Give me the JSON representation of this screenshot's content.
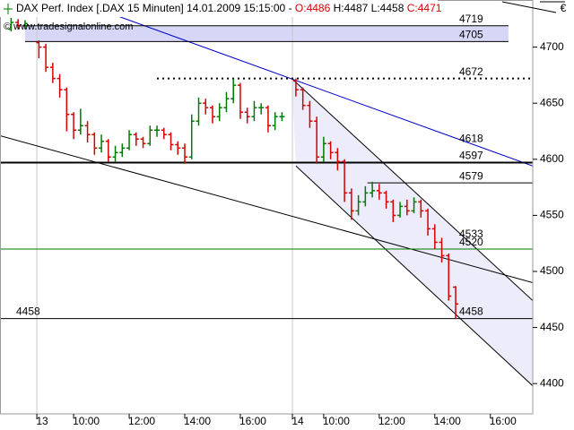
{
  "chart_data": {
    "type": "ohlc",
    "title": "DAX Perf. Index [.DAX  15 Minuten]",
    "timestamp": "14.01.2009 15:15:00",
    "separator": "-",
    "ohlc_labels": [
      {
        "text": "O:4486",
        "color": "#d40000"
      },
      {
        "text": "H:4487",
        "color": "#000000"
      },
      {
        "text": "L:4458",
        "color": "#000000"
      },
      {
        "text": "C:4471",
        "color": "#d40000"
      }
    ],
    "watermark": "© www.tradesignalonline.com",
    "currency": "€",
    "up_color": "#007a00",
    "down_color": "#d40000",
    "x": [
      1,
      2,
      3,
      5,
      6,
      7,
      8,
      9,
      10,
      11,
      12,
      13,
      14,
      15,
      16,
      17,
      18,
      19,
      20,
      21,
      22,
      23,
      24,
      25,
      26,
      27,
      28,
      29,
      30,
      31,
      32,
      33,
      34,
      35,
      36,
      37,
      38,
      39,
      40,
      42,
      43,
      44,
      45,
      46,
      47,
      48,
      49,
      50,
      51,
      52,
      53,
      54,
      55,
      56,
      57,
      58,
      59,
      60,
      61,
      62,
      63,
      64,
      65
    ],
    "open": [
      4716,
      4722,
      4719,
      4704,
      4700,
      4682,
      4672,
      4662,
      4640,
      4626,
      4630,
      4622,
      4610,
      4616,
      4602,
      4606,
      4610,
      4622,
      4618,
      4614,
      4626,
      4626,
      4622,
      4613,
      4610,
      4602,
      4634,
      4650,
      4646,
      4638,
      4646,
      4654,
      4666,
      4642,
      4638,
      4646,
      4646,
      4630,
      4638,
      4670,
      4662,
      4648,
      4634,
      4602,
      4614,
      4606,
      4598,
      4570,
      4554,
      4562,
      4570,
      4572,
      4570,
      4562,
      4550,
      4558,
      4554,
      4562,
      4554,
      4538,
      4526,
      4514,
      4486
    ],
    "high": [
      4726,
      4725,
      4724,
      4706,
      4703,
      4686,
      4676,
      4664,
      4642,
      4645,
      4634,
      4624,
      4622,
      4618,
      4612,
      4614,
      4626,
      4624,
      4620,
      4630,
      4630,
      4628,
      4624,
      4616,
      4614,
      4640,
      4655,
      4654,
      4648,
      4650,
      4660,
      4672,
      4668,
      4646,
      4652,
      4650,
      4648,
      4642,
      4642,
      4672,
      4664,
      4652,
      4638,
      4620,
      4616,
      4610,
      4600,
      4574,
      4568,
      4576,
      4580,
      4578,
      4572,
      4564,
      4562,
      4564,
      4566,
      4564,
      4556,
      4542,
      4530,
      4516,
      4487
    ],
    "low": [
      4714,
      4716,
      4716,
      4690,
      4678,
      4668,
      4655,
      4625,
      4618,
      4622,
      4615,
      4604,
      4606,
      4598,
      4598,
      4602,
      4608,
      4612,
      4610,
      4612,
      4620,
      4618,
      4608,
      4604,
      4596,
      4600,
      4630,
      4640,
      4632,
      4634,
      4642,
      4650,
      4636,
      4632,
      4634,
      4640,
      4624,
      4626,
      4634,
      4656,
      4644,
      4628,
      4596,
      4598,
      4600,
      4590,
      4562,
      4546,
      4550,
      4558,
      4566,
      4564,
      4556,
      4544,
      4548,
      4550,
      4552,
      4548,
      4532,
      4520,
      4508,
      4474,
      4458
    ],
    "close": [
      4722,
      4719,
      4721,
      4700,
      4682,
      4672,
      4662,
      4640,
      4626,
      4630,
      4622,
      4610,
      4616,
      4602,
      4606,
      4610,
      4622,
      4618,
      4614,
      4626,
      4626,
      4622,
      4613,
      4610,
      4602,
      4634,
      4650,
      4646,
      4638,
      4646,
      4654,
      4666,
      4642,
      4638,
      4646,
      4646,
      4630,
      4638,
      4638,
      4662,
      4648,
      4634,
      4602,
      4614,
      4606,
      4598,
      4570,
      4554,
      4562,
      4570,
      4572,
      4570,
      4562,
      4550,
      4558,
      4554,
      4562,
      4554,
      4538,
      4526,
      4514,
      4478,
      4471
    ],
    "xlim": [
      -0.6,
      76.1
    ],
    "ylim": [
      4373,
      4742
    ],
    "yticks": [
      4400,
      4450,
      4500,
      4550,
      4600,
      4650,
      4700
    ],
    "xticks": [
      {
        "value": 10,
        "label": "10:00"
      },
      {
        "value": 18,
        "label": "12:00"
      },
      {
        "value": 26,
        "label": "14:00"
      },
      {
        "value": 34,
        "label": "16:00"
      },
      {
        "value": 46,
        "label": "10:00"
      },
      {
        "value": 54,
        "label": "12:00"
      },
      {
        "value": 62,
        "label": "14:00"
      },
      {
        "value": 70,
        "label": "16:00"
      }
    ],
    "day_ticks": [
      {
        "value": 4.7,
        "label": "13"
      },
      {
        "value": 41.5,
        "label": "14"
      }
    ],
    "bands": [
      {
        "from": 4705,
        "to": 4719,
        "x": [
          3.0,
          72.6
        ],
        "color": "#d6d6f6"
      }
    ],
    "levels": [
      {
        "value": 4719,
        "color": "#000000",
        "width": 1,
        "x": [
          3.0,
          72.6
        ]
      },
      {
        "value": 4705,
        "color": "#000000",
        "width": 1,
        "x": [
          3.0,
          72.6
        ]
      },
      {
        "value": 4672,
        "color": "#000000",
        "width": 2,
        "dash": true,
        "x": [
          22.0,
          76.1
        ]
      },
      {
        "value": 4597,
        "color": "#000000",
        "width": 2,
        "x": [
          -0.6,
          76.1
        ]
      },
      {
        "value": 4579,
        "color": "#000000",
        "width": 1,
        "x": [
          52.3,
          76.1
        ]
      },
      {
        "value": 4520,
        "color": "#007a00",
        "width": 1,
        "x": [
          -0.6,
          76.1
        ]
      },
      {
        "value": 4458,
        "color": "#000000",
        "width": 1,
        "x": [
          -0.6,
          76.1
        ],
        "label_left": true
      }
    ],
    "annotations": [
      {
        "value": 4618,
        "color": "#0000cc"
      },
      {
        "value": 4533,
        "color": "#000000"
      }
    ],
    "trendlines": [
      {
        "color": "#0000cc",
        "points": [
          [
            16.2,
            4728
          ],
          [
            76.1,
            4594
          ]
        ]
      },
      {
        "color": "#000000",
        "points": [
          [
            -0.6,
            4621
          ],
          [
            76.1,
            4490
          ]
        ]
      }
    ],
    "channel": {
      "color": "#000000",
      "fill": "#ececfa",
      "upper": [
        [
          41.4,
          4672
        ],
        [
          76.1,
          4474
        ]
      ],
      "lower": [
        [
          42.0,
          4594
        ],
        [
          76.1,
          4398
        ]
      ]
    }
  }
}
